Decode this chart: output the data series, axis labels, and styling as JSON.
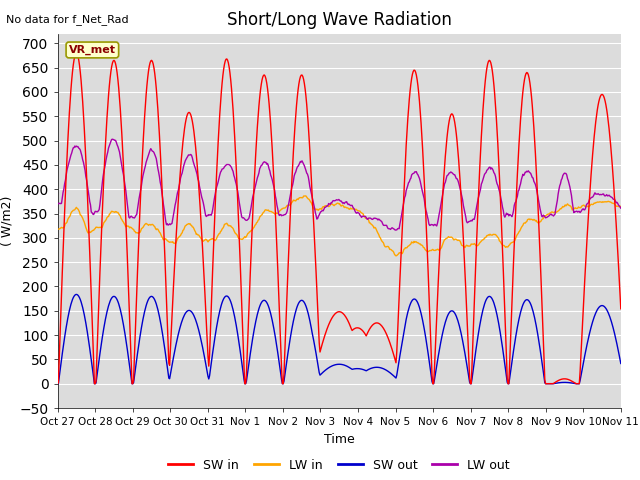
{
  "title": "Short/Long Wave Radiation",
  "xlabel": "Time",
  "ylabel": "( W/m2)",
  "ylim": [
    -50,
    720
  ],
  "annotation_text": "No data for f_Net_Rad",
  "box_label": "VR_met",
  "legend_labels": [
    "SW in",
    "LW in",
    "SW out",
    "LW out"
  ],
  "colors": {
    "SW_in": "#FF0000",
    "LW_in": "#FFA500",
    "SW_out": "#0000CC",
    "LW_out": "#AA00AA"
  },
  "x_tick_labels": [
    "Oct 27",
    "Oct 28",
    "Oct 29",
    "Oct 30",
    "Oct 31",
    "Nov 1",
    "Nov 2",
    "Nov 3",
    "Nov 4",
    "Nov 5",
    "Nov 6",
    "Nov 7",
    "Nov 8",
    "Nov 9",
    "Nov 10",
    "Nov 11"
  ],
  "bg_color": "#DCDCDC",
  "sw_peaks": [
    680,
    665,
    665,
    558,
    668,
    635,
    635,
    148,
    125,
    645,
    555,
    665,
    640,
    10,
    595
  ],
  "sw_half_widths": [
    0.08,
    0.08,
    0.08,
    0.09,
    0.08,
    0.08,
    0.08,
    0.12,
    0.11,
    0.08,
    0.08,
    0.08,
    0.08,
    0.05,
    0.1
  ],
  "lw_in_base": [
    315,
    320,
    315,
    290,
    295,
    305,
    365,
    360,
    355,
    265,
    275,
    285,
    285,
    345,
    365
  ],
  "lw_out_base": [
    370,
    350,
    340,
    330,
    340,
    345,
    345,
    345,
    340,
    325,
    325,
    330,
    335,
    345,
    360
  ]
}
